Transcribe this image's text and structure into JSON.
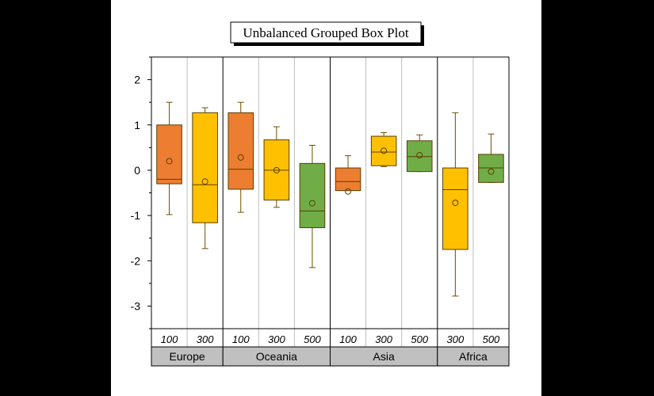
{
  "chart_data": {
    "type": "box",
    "title": "Unbalanced Grouped Box Plot",
    "xlabel": "",
    "ylabel": "",
    "ylim": [
      -3.5,
      2.5
    ],
    "yticks": [
      -3,
      -2,
      -1,
      0,
      1,
      2
    ],
    "grid": false,
    "colors": {
      "100": "#ED7D31",
      "300": "#FFC000",
      "500": "#70AD47"
    },
    "groups": [
      {
        "name": "Europe",
        "boxes": [
          {
            "category": "100",
            "whisker_low": -0.98,
            "q1": -0.3,
            "median": -0.2,
            "q3": 1.0,
            "whisker_high": 1.5,
            "mean": 0.2
          },
          {
            "category": "300",
            "whisker_low": -1.73,
            "q1": -1.16,
            "median": -0.32,
            "q3": 1.27,
            "whisker_high": 1.38,
            "mean": -0.25
          }
        ]
      },
      {
        "name": "Oceania",
        "boxes": [
          {
            "category": "100",
            "whisker_low": -0.93,
            "q1": -0.42,
            "median": 0.02,
            "q3": 1.27,
            "whisker_high": 1.5,
            "mean": 0.28
          },
          {
            "category": "300",
            "whisker_low": -0.82,
            "q1": -0.66,
            "median": 0.0,
            "q3": 0.67,
            "whisker_high": 0.96,
            "mean": 0.0
          },
          {
            "category": "500",
            "whisker_low": -2.15,
            "q1": -1.27,
            "median": -0.9,
            "q3": 0.15,
            "whisker_high": 0.55,
            "mean": -0.73
          }
        ]
      },
      {
        "name": "Asia",
        "boxes": [
          {
            "category": "100",
            "whisker_low": -0.45,
            "q1": -0.45,
            "median": -0.25,
            "q3": 0.05,
            "whisker_high": 0.32,
            "mean": -0.47
          },
          {
            "category": "300",
            "whisker_low": 0.08,
            "q1": 0.1,
            "median": 0.4,
            "q3": 0.75,
            "whisker_high": 0.83,
            "mean": 0.43
          },
          {
            "category": "500",
            "whisker_low": -0.03,
            "q1": -0.03,
            "median": 0.3,
            "q3": 0.65,
            "whisker_high": 0.78,
            "mean": 0.33
          }
        ]
      },
      {
        "name": "Africa",
        "boxes": [
          {
            "category": "300",
            "whisker_low": -2.78,
            "q1": -1.75,
            "median": -0.43,
            "q3": 0.05,
            "whisker_high": 1.27,
            "mean": -0.72
          },
          {
            "category": "500",
            "whisker_low": -0.27,
            "q1": -0.27,
            "median": 0.05,
            "q3": 0.35,
            "whisker_high": 0.8,
            "mean": -0.03
          }
        ]
      }
    ]
  }
}
